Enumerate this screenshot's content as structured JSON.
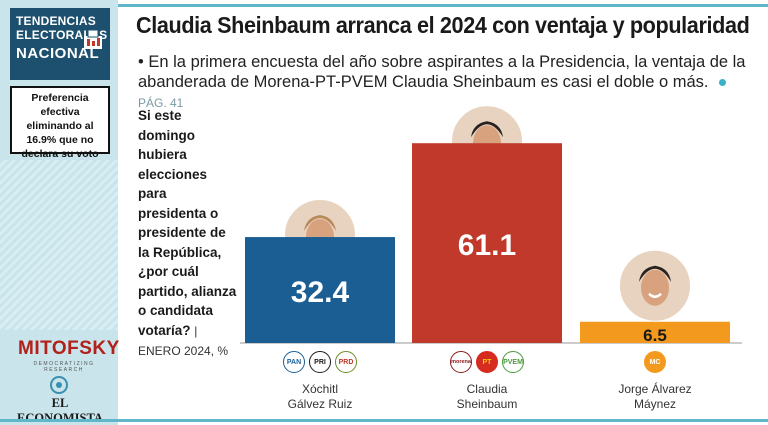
{
  "brand": {
    "line1": "TENDENCIAS",
    "line2": "ELECTORALES",
    "line3": "NACIONAL"
  },
  "preference_note": "Preferencia efectiva eliminando al 16.9% que no declara su voto",
  "sponsors": {
    "mitofsky": "MITOFSKY",
    "mitofsky_tag": "DEMOCRATIZING RESEARCH",
    "economista": "EL ECONOMISTA"
  },
  "title": "Claudia Sheinbaum arranca el 2024 con ventaja y popularidad",
  "subtitle": {
    "bullet": "•",
    "text": "En la primera encuesta del año sobre aspirantes a la Presidencia, la ventaja de la abanderada de Morena-PT-PVEM Claudia Sheinbaum es casi el doble o más.",
    "page_ref": "PÁG. 41"
  },
  "question": {
    "text": "Si este domingo hubiera elecciones para presidenta o presidente de la República, ¿por cuál partido, alianza o candidata votaría?",
    "note": "| ENERO 2024, %"
  },
  "colors": {
    "accent": "#5fb7c9",
    "sidebar": "#c9e4ea",
    "brand_box": "#1d4f6e",
    "galvez": "#1a5e94",
    "sheinbaum": "#c0392b",
    "maynez": "#f39a1e"
  },
  "chart_data": {
    "type": "bar",
    "categories": [
      "Xóchitl Gálvez Ruiz",
      "Claudia Sheinbaum",
      "Jorge Álvarez Máynez"
    ],
    "label_lines": [
      [
        "Xóchitl",
        "Gálvez Ruiz"
      ],
      [
        "Claudia",
        "Sheinbaum"
      ],
      [
        "Jorge Álvarez",
        "Máynez"
      ]
    ],
    "values": [
      32.4,
      61.1,
      6.5
    ],
    "value_labels": [
      "32.4",
      "61.1",
      "6.5"
    ],
    "colors": [
      "#1a5e94",
      "#c0392b",
      "#f39a1e"
    ],
    "parties": [
      [
        {
          "text": "PAN",
          "bg": "#ffffff",
          "fg": "#1a5e94",
          "border": "#1a5e94"
        },
        {
          "text": "PRI",
          "bg": "#ffffff",
          "fg": "#1a1a1a",
          "border": "#1a1a1a"
        },
        {
          "text": "PRD",
          "bg": "#ffffff",
          "fg": "#c0392b",
          "border": "#6b8e23"
        }
      ],
      [
        {
          "text": "morena",
          "bg": "#ffffff",
          "fg": "#8b1a1a",
          "border": "#8b1a1a"
        },
        {
          "text": "PT",
          "bg": "#d62b1f",
          "fg": "#f5d100",
          "border": "#d62b1f"
        },
        {
          "text": "PVEM",
          "bg": "#ffffff",
          "fg": "#4a9a3a",
          "border": "#4a9a3a"
        }
      ],
      [
        {
          "text": "MC",
          "bg": "#f39a1e",
          "fg": "#ffffff",
          "border": "#f39a1e"
        }
      ]
    ],
    "ylim": [
      0,
      70
    ],
    "title": "",
    "xlabel": "",
    "ylabel": ""
  }
}
